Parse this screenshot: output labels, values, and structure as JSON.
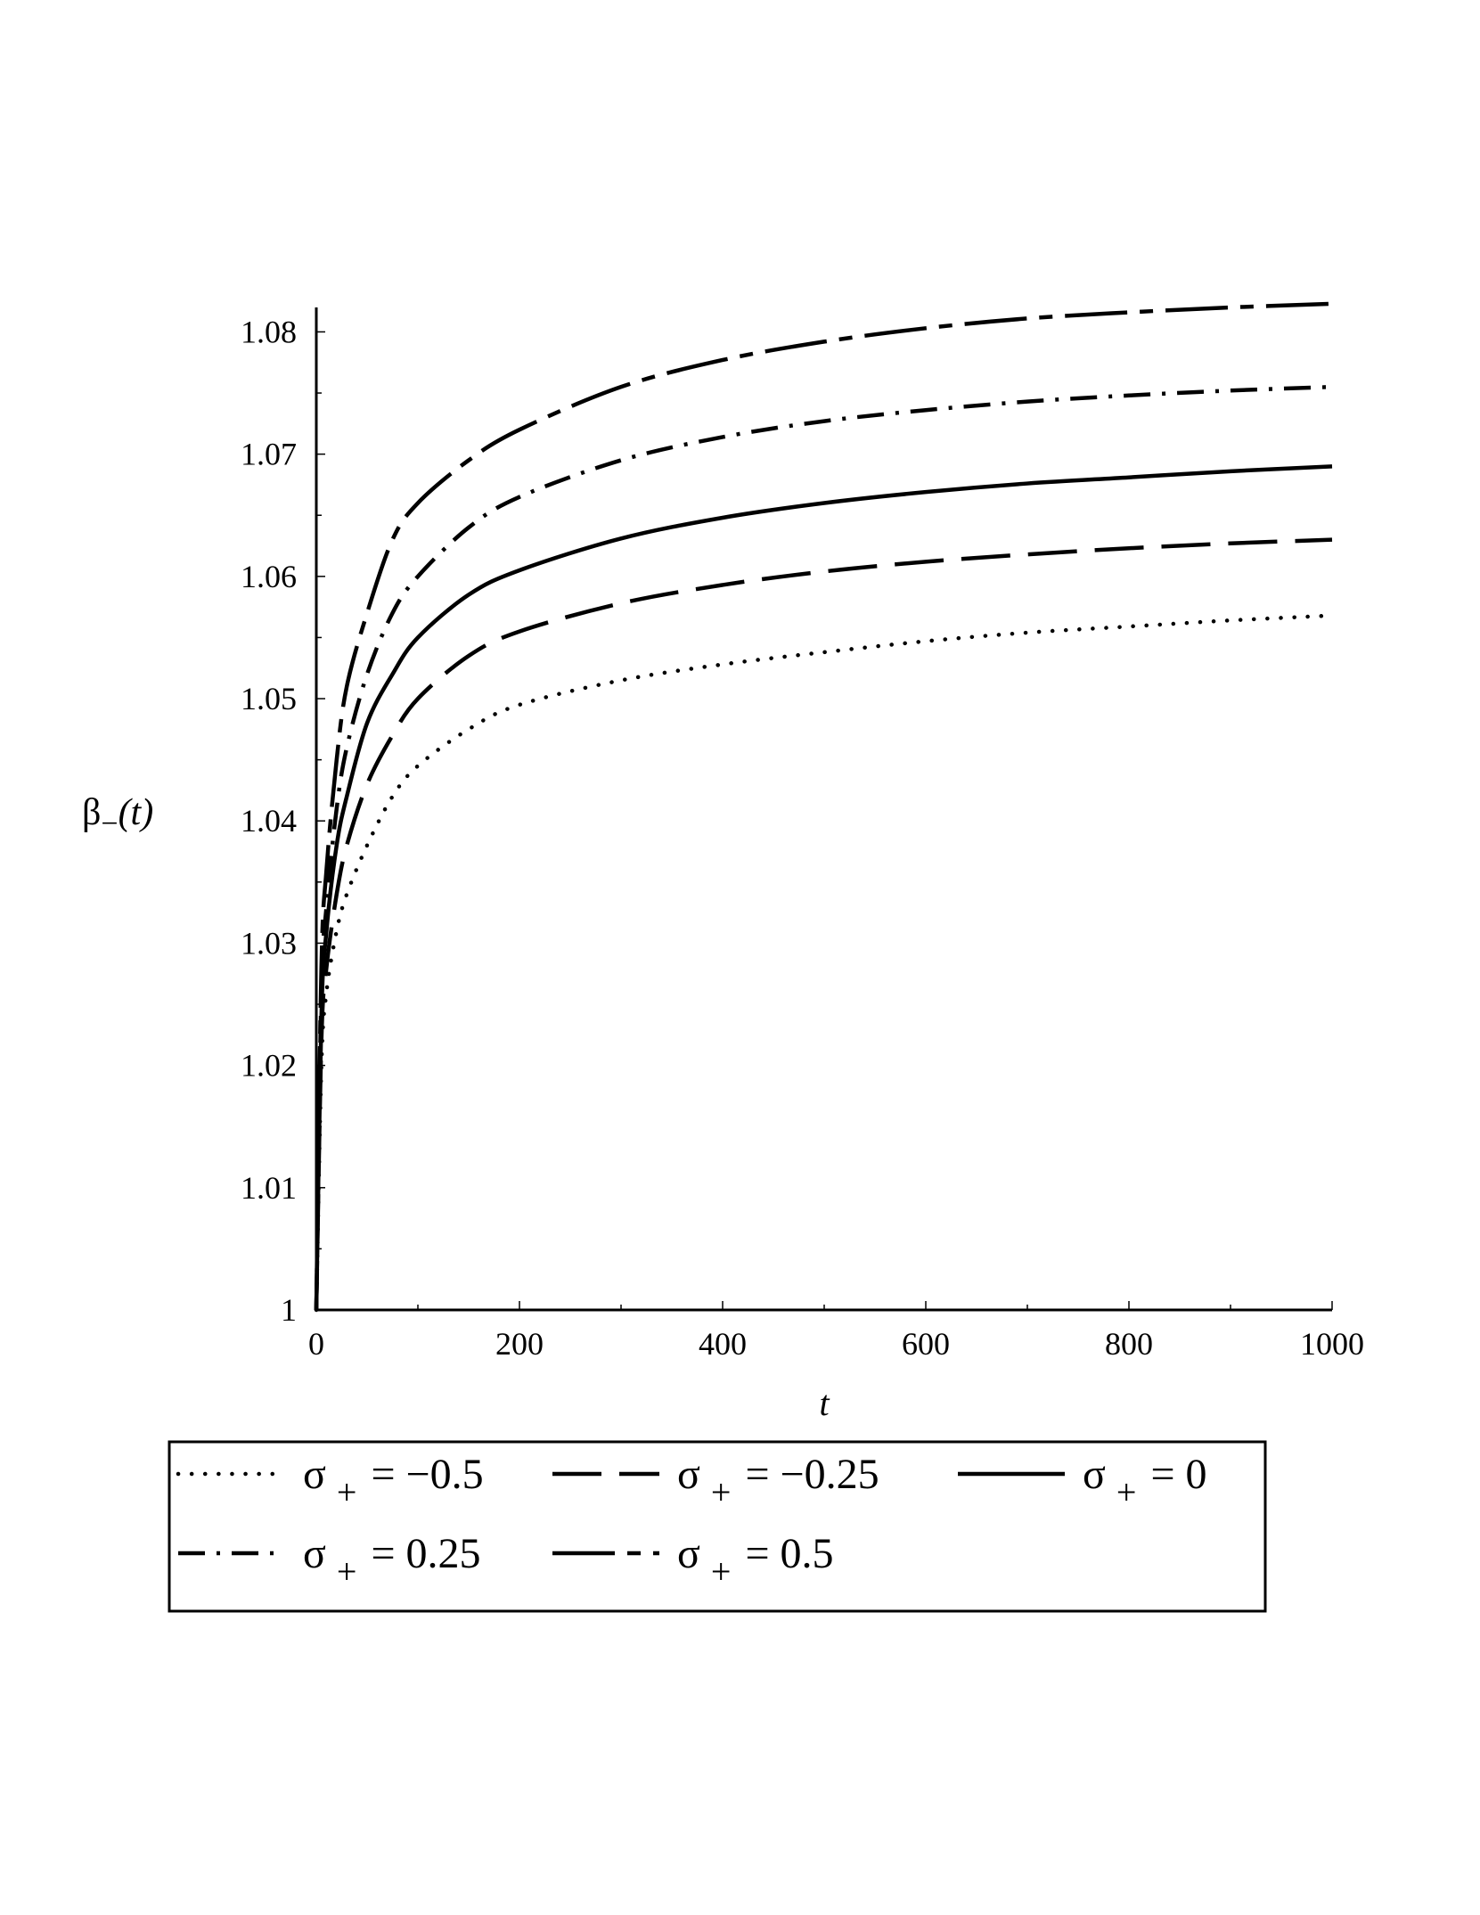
{
  "chart_data": {
    "type": "line",
    "title": "",
    "xlabel": "t",
    "ylabel": {
      "symbol": "β",
      "subscript": "−",
      "arg": "(t)"
    },
    "xlim": [
      0,
      1000
    ],
    "ylim": [
      1.0,
      1.082
    ],
    "xticks": [
      0,
      200,
      400,
      600,
      800,
      1000
    ],
    "xtick_labels": [
      "0",
      "200",
      "400",
      "600",
      "800",
      "1000"
    ],
    "yticks": [
      1.0,
      1.01,
      1.02,
      1.03,
      1.04,
      1.05,
      1.06,
      1.07,
      1.08
    ],
    "ytick_labels": [
      "1",
      "1.01",
      "1.02",
      "1.03",
      "1.04",
      "1.05",
      "1.06",
      "1.07",
      "1.08"
    ],
    "grid": false,
    "legend_position": "bottom",
    "x": [
      0,
      5,
      10,
      20,
      30,
      50,
      75,
      100,
      150,
      200,
      300,
      400,
      500,
      600,
      700,
      800,
      900,
      1000
    ],
    "series": [
      {
        "legend": {
          "symbol": "σ",
          "sub": "+",
          "rest": "= −0.5"
        },
        "dash": "dotted",
        "values": [
          1.0,
          1.02,
          1.026,
          1.031,
          1.034,
          1.038,
          1.042,
          1.0445,
          1.0475,
          1.0495,
          1.0515,
          1.0528,
          1.0538,
          1.0547,
          1.0554,
          1.0559,
          1.0564,
          1.0568
        ]
      },
      {
        "legend": {
          "symbol": "σ",
          "sub": "+",
          "rest": "= −0.25"
        },
        "dash": "dashed",
        "values": [
          1.0,
          1.022,
          1.028,
          1.034,
          1.038,
          1.043,
          1.047,
          1.05,
          1.0535,
          1.0555,
          1.0578,
          1.0593,
          1.0604,
          1.0612,
          1.0618,
          1.0623,
          1.0627,
          1.063
        ]
      },
      {
        "legend": {
          "symbol": "σ",
          "sub": "+",
          "rest": "= 0"
        },
        "dash": "solid",
        "values": [
          1.0,
          1.024,
          1.031,
          1.038,
          1.042,
          1.048,
          1.052,
          1.055,
          1.0585,
          1.0605,
          1.0631,
          1.0648,
          1.066,
          1.0669,
          1.0676,
          1.0681,
          1.0686,
          1.069
        ]
      },
      {
        "legend": {
          "symbol": "σ",
          "sub": "+",
          "rest": "= 0.25"
        },
        "dash": "dashdot",
        "values": [
          1.0,
          1.026,
          1.033,
          1.041,
          1.046,
          1.052,
          1.057,
          1.06,
          1.064,
          1.0665,
          1.0695,
          1.0714,
          1.0727,
          1.0736,
          1.0743,
          1.0748,
          1.0752,
          1.0755
        ]
      },
      {
        "legend": {
          "symbol": "σ",
          "sub": "+",
          "rest": "= 0.5"
        },
        "dash": "longdash",
        "values": [
          1.0,
          1.028,
          1.036,
          1.045,
          1.051,
          1.057,
          1.063,
          1.066,
          1.0695,
          1.072,
          1.0755,
          1.0777,
          1.0792,
          1.0803,
          1.0811,
          1.0816,
          1.082,
          1.0823
        ]
      }
    ]
  }
}
